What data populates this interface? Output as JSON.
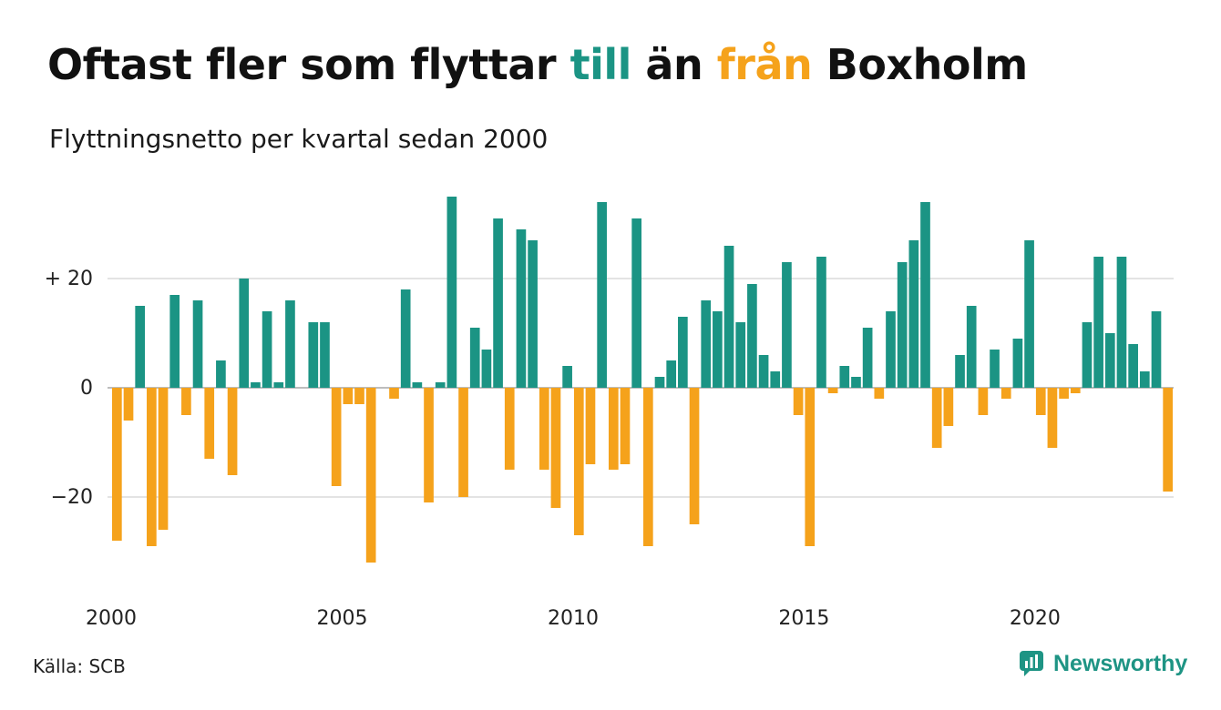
{
  "title": {
    "part1": "Oftast fler som flyttar ",
    "word_to": "till",
    "part2": " än ",
    "word_from": "från",
    "part3": " Boxholm"
  },
  "subtitle": "Flyttningsnetto per kvartal sedan 2000",
  "source": "Källa: SCB",
  "brand": {
    "name": "Newsworthy",
    "icon": "newsworthy-logo-icon"
  },
  "colors": {
    "positive": "#1b9484",
    "negative": "#f5a21b",
    "grid": "#e3e3e3",
    "title_to": "#1b9484",
    "title_from": "#f5a21b"
  },
  "chart_data": {
    "type": "bar",
    "x_start": "2000-Q1",
    "x_ticks": [
      "2000",
      "2005",
      "2010",
      "2015",
      "2020"
    ],
    "y_ticks": [
      {
        "value": 20,
        "label": "+ 20"
      },
      {
        "value": 0,
        "label": "0"
      },
      {
        "value": -20,
        "label": "−20"
      }
    ],
    "ylim": [
      -37,
      37
    ],
    "grid": "horizontal",
    "values": [
      -28,
      -6,
      15,
      -29,
      -26,
      17,
      -5,
      16,
      -13,
      5,
      -16,
      20,
      1,
      14,
      1,
      16,
      0,
      12,
      12,
      -18,
      -3,
      -3,
      -32,
      0,
      -2,
      18,
      1,
      -21,
      1,
      35,
      -20,
      11,
      7,
      31,
      -15,
      29,
      27,
      -15,
      -22,
      4,
      -27,
      -14,
      34,
      -15,
      -14,
      31,
      -29,
      2,
      5,
      13,
      -25,
      16,
      14,
      26,
      12,
      19,
      6,
      3,
      23,
      -5,
      -29,
      24,
      -1,
      4,
      2,
      11,
      -2,
      14,
      23,
      27,
      34,
      -11,
      -7,
      6,
      15,
      -5,
      7,
      -2,
      9,
      27,
      -5,
      -11,
      -2,
      -1,
      12,
      24,
      10,
      24,
      8,
      3,
      14,
      -19
    ]
  }
}
